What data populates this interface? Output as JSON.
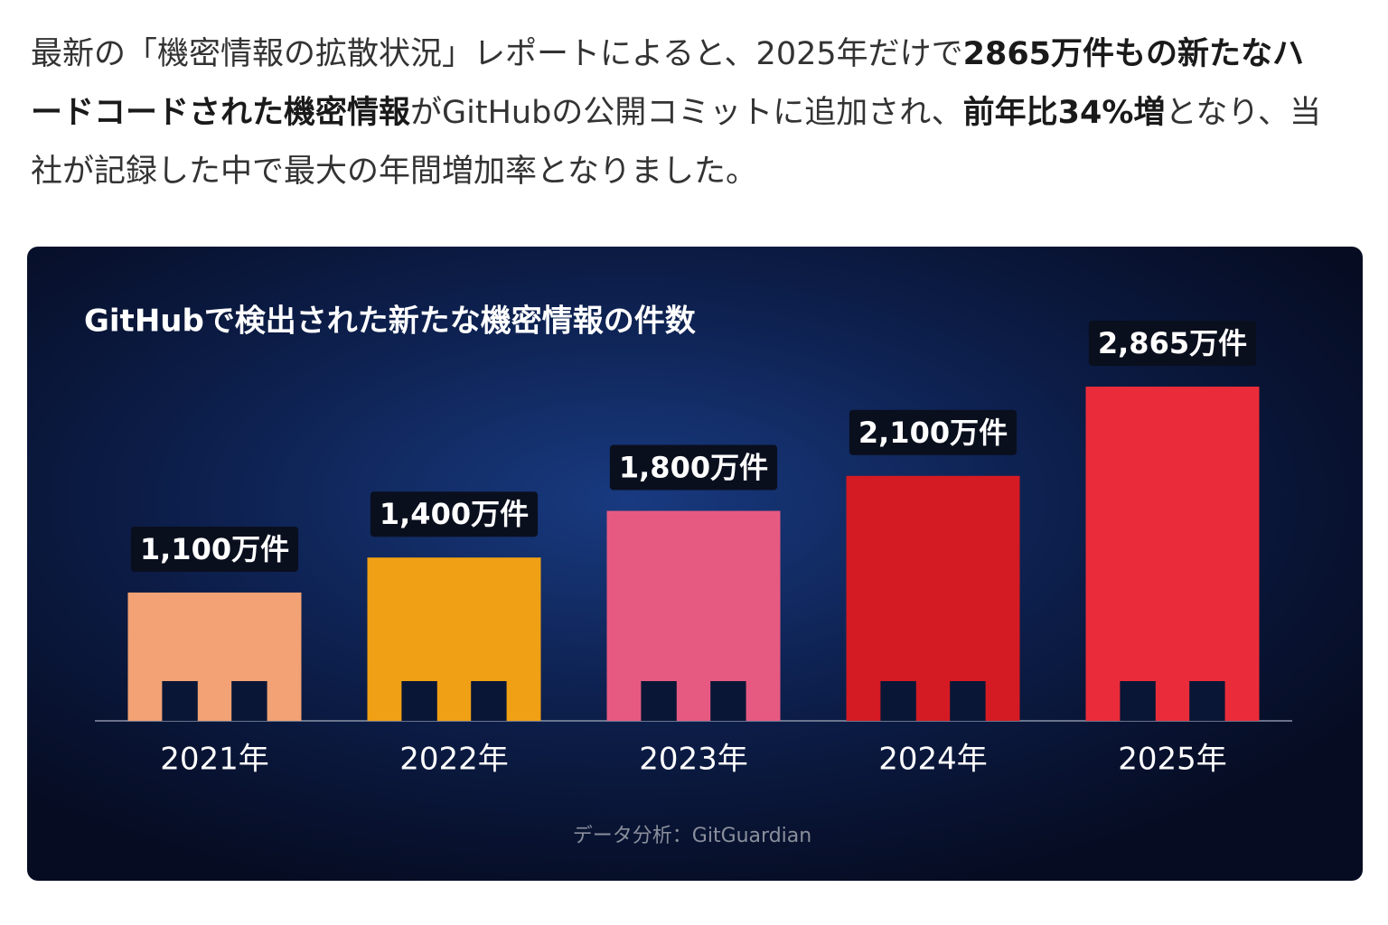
{
  "article": {
    "paragraph": [
      {
        "text": "最新の「機密情報の拡散状況」レポートによると、2025年だけで",
        "bold": false
      },
      {
        "text": "2865万件もの新たなハードコードされた機密情報",
        "bold": true
      },
      {
        "text": "がGitHubの公開コミットに追加され、",
        "bold": false
      },
      {
        "text": "前年比34%増",
        "bold": true
      },
      {
        "text": "となり、当社が記録した中で最大の年間増加率となりました。",
        "bold": false
      }
    ]
  },
  "chart_data": {
    "type": "bar",
    "title": "GitHubで検出された新たな機密情報の件数",
    "categories": [
      "2021年",
      "2022年",
      "2023年",
      "2024年",
      "2025年"
    ],
    "values": [
      1100,
      1400,
      1800,
      2100,
      2865
    ],
    "value_labels": [
      "1,100万件",
      "1,400万件",
      "1,800万件",
      "2,100万件",
      "2,865万件"
    ],
    "colors": [
      "#f2a274",
      "#f0a014",
      "#e65a82",
      "#d41a22",
      "#ea2c3a"
    ],
    "source": "データ分析：GitGuardian"
  }
}
